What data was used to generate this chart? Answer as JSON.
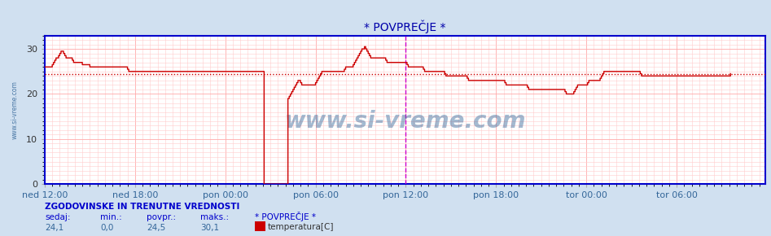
{
  "title": "* POVPREČJE *",
  "bg_color": "#d0e0f0",
  "plot_bg_color": "#ffffff",
  "line_color": "#cc0000",
  "avg_line_color": "#cc0000",
  "grid_color_minor": "#ffcccc",
  "grid_color_major": "#ffaaaa",
  "border_color": "#0000cc",
  "vline_magenta1": "#cc00cc",
  "vline_magenta2": "#cc00cc",
  "ylim": [
    0,
    33
  ],
  "yticks": [
    0,
    10,
    20,
    30
  ],
  "xlim": [
    0,
    575
  ],
  "xtick_labels": [
    "ned 12:00",
    "ned 18:00",
    "pon 00:00",
    "pon 06:00",
    "pon 12:00",
    "pon 18:00",
    "tor 00:00",
    "tor 06:00"
  ],
  "xtick_positions": [
    0,
    72,
    144,
    216,
    288,
    360,
    432,
    504
  ],
  "avg_value": 24.5,
  "watermark": "www.si-vreme.com",
  "footer_title": "ZGODOVINSKE IN TRENUTNE VREDNOSTI",
  "footer_col1_label": "sedaj:",
  "footer_col2_label": "min.:",
  "footer_col3_label": "povpr.:",
  "footer_col4_label": "maks.:",
  "footer_col1_val": "24,1",
  "footer_col2_val": "0,0",
  "footer_col3_val": "24,5",
  "footer_col4_val": "30,1",
  "footer_series": "* POVPREČJE *",
  "footer_legend_label": "temperatura[C]",
  "footer_legend_color": "#cc0000",
  "left_label": "www.si-vreme.com",
  "magenta_vline1_x": 288,
  "magenta_vline2_x": 575,
  "temperature_data": [
    26.0,
    26.0,
    26.0,
    26.0,
    26.0,
    26.0,
    26.5,
    27.0,
    27.5,
    28.0,
    28.0,
    28.5,
    29.0,
    29.5,
    29.5,
    29.0,
    28.5,
    28.0,
    28.0,
    28.0,
    28.0,
    28.0,
    27.5,
    27.0,
    27.0,
    27.0,
    27.0,
    27.0,
    27.0,
    27.0,
    26.5,
    26.5,
    26.5,
    26.5,
    26.5,
    26.5,
    26.0,
    26.0,
    26.0,
    26.0,
    26.0,
    26.0,
    26.0,
    26.0,
    26.0,
    26.0,
    26.0,
    26.0,
    26.0,
    26.0,
    26.0,
    26.0,
    26.0,
    26.0,
    26.0,
    26.0,
    26.0,
    26.0,
    26.0,
    26.0,
    26.0,
    26.0,
    26.0,
    26.0,
    26.0,
    26.0,
    25.5,
    25.0,
    25.0,
    25.0,
    25.0,
    25.0,
    25.0,
    25.0,
    25.0,
    25.0,
    25.0,
    25.0,
    25.0,
    25.0,
    25.0,
    25.0,
    25.0,
    25.0,
    25.0,
    25.0,
    25.0,
    25.0,
    25.0,
    25.0,
    25.0,
    25.0,
    25.0,
    25.0,
    25.0,
    25.0,
    25.0,
    25.0,
    25.0,
    25.0,
    25.0,
    25.0,
    25.0,
    25.0,
    25.0,
    25.0,
    25.0,
    25.0,
    25.0,
    25.0,
    25.0,
    25.0,
    25.0,
    25.0,
    25.0,
    25.0,
    25.0,
    25.0,
    25.0,
    25.0,
    25.0,
    25.0,
    25.0,
    25.0,
    25.0,
    25.0,
    25.0,
    25.0,
    25.0,
    25.0,
    25.0,
    25.0,
    25.0,
    25.0,
    25.0,
    25.0,
    25.0,
    25.0,
    25.0,
    25.0,
    25.0,
    25.0,
    25.0,
    25.0,
    25.0,
    25.0,
    25.0,
    25.0,
    25.0,
    25.0,
    25.0,
    25.0,
    25.0,
    25.0,
    25.0,
    25.0,
    25.0,
    25.0,
    25.0,
    25.0,
    25.0,
    25.0,
    25.0,
    25.0,
    25.0,
    25.0,
    25.0,
    25.0,
    25.0,
    25.0,
    25.0,
    25.0,
    25.0,
    25.0,
    25.0,
    0.0,
    0.0,
    0.0,
    0.0,
    0.0,
    0.0,
    0.0,
    0.0,
    0.0,
    0.0,
    0.0,
    0.0,
    0.0,
    0.0,
    0.0,
    0.0,
    0.0,
    0.0,
    0.0,
    19.0,
    19.5,
    20.0,
    20.5,
    21.0,
    21.5,
    22.0,
    22.5,
    23.0,
    23.0,
    22.5,
    22.0,
    22.0,
    22.0,
    22.0,
    22.0,
    22.0,
    22.0,
    22.0,
    22.0,
    22.0,
    22.0,
    22.5,
    23.0,
    23.5,
    24.0,
    24.5,
    25.0,
    25.0,
    25.0,
    25.0,
    25.0,
    25.0,
    25.0,
    25.0,
    25.0,
    25.0,
    25.0,
    25.0,
    25.0,
    25.0,
    25.0,
    25.0,
    25.0,
    25.0,
    25.5,
    26.0,
    26.0,
    26.0,
    26.0,
    26.0,
    26.0,
    26.5,
    27.0,
    27.5,
    28.0,
    28.5,
    29.0,
    29.5,
    30.0,
    30.0,
    30.5,
    30.0,
    29.5,
    29.0,
    28.5,
    28.0,
    28.0,
    28.0,
    28.0,
    28.0,
    28.0,
    28.0,
    28.0,
    28.0,
    28.0,
    28.0,
    28.0,
    27.5,
    27.0,
    27.0,
    27.0,
    27.0,
    27.0,
    27.0,
    27.0,
    27.0,
    27.0,
    27.0,
    27.0,
    27.0,
    27.0,
    27.0,
    27.0,
    27.0,
    26.5,
    26.0,
    26.0,
    26.0,
    26.0,
    26.0,
    26.0,
    26.0,
    26.0,
    26.0,
    26.0,
    26.0,
    26.0,
    25.5,
    25.0,
    25.0,
    25.0,
    25.0,
    25.0,
    25.0,
    25.0,
    25.0,
    25.0,
    25.0,
    25.0,
    25.0,
    25.0,
    25.0,
    25.0,
    25.0,
    24.5,
    24.0,
    24.0,
    24.0,
    24.0,
    24.0,
    24.0,
    24.0,
    24.0,
    24.0,
    24.0,
    24.0,
    24.0,
    24.0,
    24.0,
    24.0,
    24.0,
    24.0,
    23.5,
    23.0,
    23.0,
    23.0,
    23.0,
    23.0,
    23.0,
    23.0,
    23.0,
    23.0,
    23.0,
    23.0,
    23.0,
    23.0,
    23.0,
    23.0,
    23.0,
    23.0,
    23.0,
    23.0,
    23.0,
    23.0,
    23.0,
    23.0,
    23.0,
    23.0,
    23.0,
    23.0,
    23.0,
    23.0,
    22.5,
    22.0,
    22.0,
    22.0,
    22.0,
    22.0,
    22.0,
    22.0,
    22.0,
    22.0,
    22.0,
    22.0,
    22.0,
    22.0,
    22.0,
    22.0,
    22.0,
    22.0,
    21.5,
    21.0,
    21.0,
    21.0,
    21.0,
    21.0,
    21.0,
    21.0,
    21.0,
    21.0,
    21.0,
    21.0,
    21.0,
    21.0,
    21.0,
    21.0,
    21.0,
    21.0,
    21.0,
    21.0,
    21.0,
    21.0,
    21.0,
    21.0,
    21.0,
    21.0,
    21.0,
    21.0,
    21.0,
    21.0,
    20.5,
    20.0,
    20.0,
    20.0,
    20.0,
    20.0,
    20.0,
    20.5,
    21.0,
    21.5,
    22.0,
    22.0,
    22.0,
    22.0,
    22.0,
    22.0,
    22.0,
    22.0,
    22.5,
    23.0,
    23.0,
    23.0,
    23.0,
    23.0,
    23.0,
    23.0,
    23.0,
    23.0,
    23.5,
    24.0,
    24.5,
    25.0,
    25.0,
    25.0,
    25.0,
    25.0,
    25.0,
    25.0,
    25.0,
    25.0,
    25.0,
    25.0,
    25.0,
    25.0,
    25.0,
    25.0,
    25.0,
    25.0,
    25.0,
    25.0,
    25.0,
    25.0,
    25.0,
    25.0,
    25.0,
    25.0,
    25.0,
    25.0,
    25.0,
    25.0,
    24.5,
    24.0,
    24.0,
    24.0,
    24.0,
    24.0,
    24.0,
    24.0,
    24.0,
    24.0,
    24.0,
    24.0,
    24.0,
    24.0,
    24.0,
    24.0,
    24.0,
    24.0,
    24.0,
    24.0,
    24.0,
    24.0,
    24.0,
    24.0,
    24.0,
    24.0,
    24.0,
    24.0,
    24.0,
    24.0,
    24.0,
    24.0,
    24.0,
    24.0,
    24.0,
    24.0,
    24.0,
    24.0,
    24.0,
    24.0,
    24.0,
    24.0,
    24.0,
    24.0,
    24.0,
    24.0,
    24.0,
    24.0,
    24.0,
    24.0,
    24.0,
    24.0,
    24.0,
    24.0,
    24.0,
    24.0,
    24.0,
    24.0,
    24.0,
    24.0,
    24.0,
    24.0,
    24.0,
    24.0,
    24.0,
    24.0,
    24.0,
    24.0,
    24.0,
    24.0,
    24.0,
    24.0,
    24.5
  ]
}
